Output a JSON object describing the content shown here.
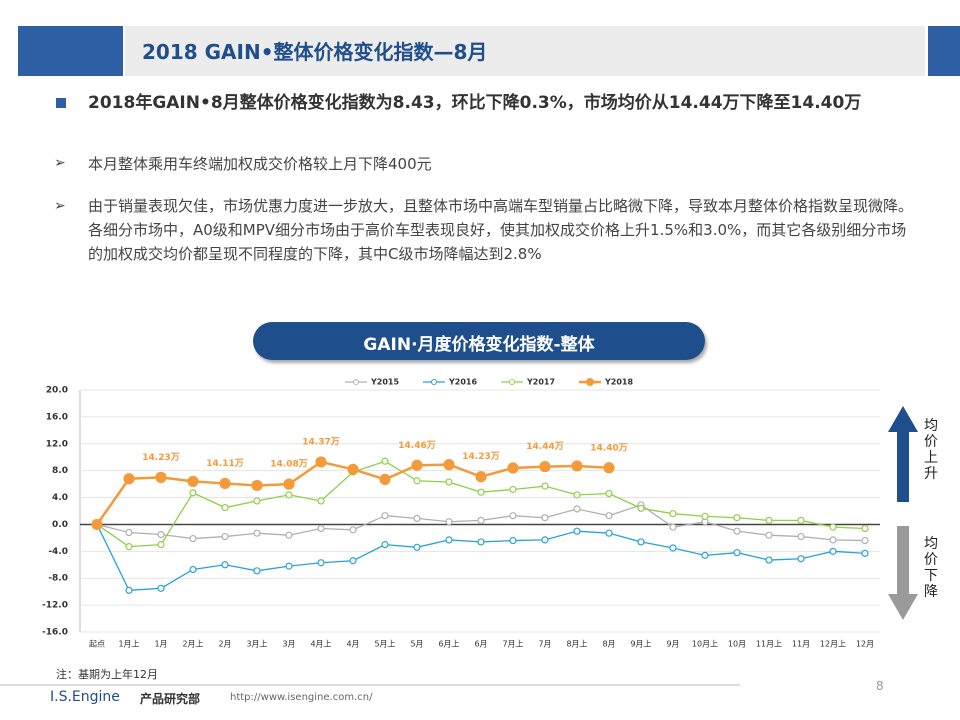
{
  "header": {
    "title": "2018 GAIN•整体价格变化指数—8月"
  },
  "bullets": {
    "main": "2018年GAIN•8月整体价格变化指数为8.43，环比下降0.3%，市场均价从14.44万下降至14.40万",
    "sub": [
      "本月整体乘用车终端加权成交价格较上月下降400元",
      "由于销量表现欠佳，市场优惠力度进一步放大，且整体市场中高端车型销量占比略微下降，导致本月整体价格指数呈现微降。各细分市场中，A0级和MPV细分市场由于高价车型表现良好，使其加权成交价格上升1.5%和3.0%，而其它各级别细分市场的加权成交均价都呈现不同程度的下降，其中C级市场降幅达到2.8%"
    ]
  },
  "side": {
    "up": "均价上升",
    "down": "均价下降"
  },
  "note": "注：基期为上年12月",
  "footer": {
    "brand": "I.S.Engine",
    "dept": "产品研究部",
    "url": "http://www.isengine.com.cn/",
    "page": "8"
  },
  "chart_data": {
    "type": "line",
    "title": "GAIN·月度价格变化指数-整体",
    "categories": [
      "起点",
      "1月上",
      "1月",
      "2月上",
      "2月",
      "3月上",
      "3月",
      "4月上",
      "4月",
      "5月上",
      "5月",
      "6月上",
      "6月",
      "7月上",
      "7月",
      "8月上",
      "8月",
      "9月上",
      "9月",
      "10月上",
      "10月",
      "11月上",
      "11月",
      "12月上",
      "12月"
    ],
    "series": [
      {
        "name": "Y2015",
        "color": "#b0b0b0",
        "values": [
          0,
          -1.2,
          -1.5,
          -2.1,
          -1.8,
          -1.3,
          -1.6,
          -0.6,
          -0.8,
          1.3,
          0.9,
          0.4,
          0.6,
          1.3,
          1.0,
          2.3,
          1.3,
          2.9,
          -0.4,
          0.4,
          -1.0,
          -1.6,
          -1.8,
          -2.3,
          -2.4
        ]
      },
      {
        "name": "Y2016",
        "color": "#29a3d4",
        "values": [
          0,
          -9.8,
          -9.5,
          -6.7,
          -6.0,
          -6.9,
          -6.2,
          -5.7,
          -5.4,
          -3.0,
          -3.4,
          -2.3,
          -2.6,
          -2.4,
          -2.3,
          -1.0,
          -1.3,
          -2.6,
          -3.5,
          -4.6,
          -4.2,
          -5.3,
          -5.1,
          -4.0,
          -4.3
        ]
      },
      {
        "name": "Y2017",
        "color": "#8fcf4a",
        "values": [
          0,
          -3.3,
          -3.0,
          4.7,
          2.5,
          3.5,
          4.4,
          3.5,
          7.8,
          9.4,
          6.5,
          6.3,
          4.8,
          5.2,
          5.7,
          4.4,
          4.6,
          2.4,
          1.6,
          1.2,
          1.0,
          0.6,
          0.6,
          -0.4,
          -0.6
        ]
      },
      {
        "name": "Y2018",
        "color": "#f39a3a",
        "values": [
          0,
          6.8,
          7.0,
          6.4,
          6.1,
          5.8,
          6.0,
          9.3,
          8.2,
          6.7,
          8.8,
          8.9,
          7.1,
          8.4,
          8.6,
          8.7,
          8.43,
          null,
          null,
          null,
          null,
          null,
          null,
          null,
          null
        ]
      }
    ],
    "annotations": [
      {
        "text": "14.23万",
        "category": "1月"
      },
      {
        "text": "14.11万",
        "category": "2月"
      },
      {
        "text": "14.08万",
        "category": "3月"
      },
      {
        "text": "14.37万",
        "category": "4月上"
      },
      {
        "text": "14.46万",
        "category": "5月"
      },
      {
        "text": "14.23万",
        "category": "6月"
      },
      {
        "text": "14.44万",
        "category": "7月"
      },
      {
        "text": "14.40万",
        "category": "8月"
      }
    ],
    "ylim": [
      -16,
      20
    ],
    "yticks": [
      {
        "value": -16,
        "label": "-16.0"
      },
      {
        "value": -12,
        "label": "-12.0"
      },
      {
        "value": -8,
        "label": "-8.0"
      },
      {
        "value": -4,
        "label": "-4.0"
      },
      {
        "value": 0,
        "label": "0.0"
      },
      {
        "value": 4,
        "label": "4.0"
      },
      {
        "value": 8,
        "label": "8.0"
      },
      {
        "value": 12,
        "label": "12.0"
      },
      {
        "value": 16,
        "label": "16.0"
      },
      {
        "value": 20,
        "label": "20.0"
      }
    ],
    "grid": true
  }
}
